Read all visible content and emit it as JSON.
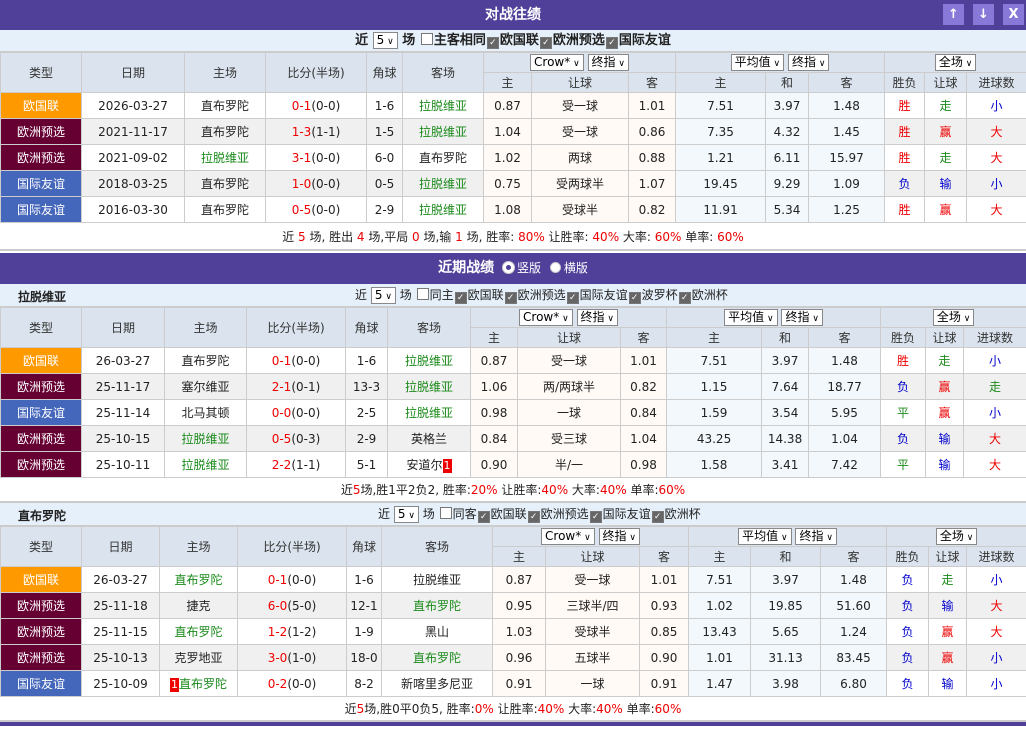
{
  "title": "对战往绩",
  "window_buttons": [
    {
      "icon": "arrow-up-icon",
      "glyph": "↑"
    },
    {
      "icon": "arrow-down-icon",
      "glyph": "↓"
    },
    {
      "icon": "close-icon",
      "glyph": "X"
    }
  ],
  "colors": {
    "accent": "#50409a",
    "欧国联": "#ff9900",
    "欧洲预选": "#660033",
    "国际友谊": "#4466bb",
    "win": "#e00000",
    "lose": "#0000cc",
    "draw": "#1a8a1a"
  },
  "headers": {
    "type": "类型",
    "date": "日期",
    "home": "主场",
    "score": "比分(半场)",
    "corner": "角球",
    "away": "客场",
    "h": "主",
    "hcp": "让球",
    "a": "客",
    "ah": "主",
    "ad": "和",
    "aa": "客",
    "res": "胜负",
    "hres": "让球",
    "goals": "进球数",
    "sel_company": "Crow*",
    "sel_final": "终指",
    "sel_avg": "平均值",
    "sel_final2": "终指",
    "sel_period": "全场"
  },
  "recent": {
    "title": "近期战绩",
    "radio_vertical": "竖版",
    "radio_horizontal": "横版",
    "selected": "横版"
  },
  "sections": [
    {
      "team": "",
      "filter": {
        "prefix": "近",
        "count": "5",
        "suffix": "场",
        "same_label": "主客相同",
        "same_checked": false,
        "leagues": [
          "欧国联",
          "欧洲预选",
          "国际友谊"
        ]
      },
      "rows": [
        {
          "type": "欧国联",
          "date": "2026-03-27",
          "home": "直布罗陀",
          "home_hl": false,
          "score": "0-1",
          "half": "(0-0)",
          "corner": "1-6",
          "away": "拉脱维亚",
          "away_hl": true,
          "h": "0.87",
          "hcp": "受一球",
          "a": "1.01",
          "ah": "7.51",
          "ad": "3.97",
          "aa": "1.48",
          "res": "胜",
          "hres": "走",
          "goals": "小"
        },
        {
          "type": "欧洲预选",
          "date": "2021-11-17",
          "home": "直布罗陀",
          "home_hl": false,
          "score": "1-3",
          "half": "(1-1)",
          "corner": "1-5",
          "away": "拉脱维亚",
          "away_hl": true,
          "h": "1.04",
          "hcp": "受一球",
          "a": "0.86",
          "ah": "7.35",
          "ad": "4.32",
          "aa": "1.45",
          "res": "胜",
          "hres": "赢",
          "goals": "大"
        },
        {
          "type": "欧洲预选",
          "date": "2021-09-02",
          "home": "拉脱维亚",
          "home_hl": true,
          "score": "3-1",
          "half": "(0-0)",
          "corner": "6-0",
          "away": "直布罗陀",
          "away_hl": false,
          "h": "1.02",
          "hcp": "两球",
          "a": "0.88",
          "ah": "1.21",
          "ad": "6.11",
          "aa": "15.97",
          "res": "胜",
          "hres": "走",
          "goals": "大"
        },
        {
          "type": "国际友谊",
          "date": "2018-03-25",
          "home": "直布罗陀",
          "home_hl": false,
          "score": "1-0",
          "half": "(0-0)",
          "corner": "0-5",
          "away": "拉脱维亚",
          "away_hl": true,
          "h": "0.75",
          "hcp": "受两球半",
          "a": "1.07",
          "ah": "19.45",
          "ad": "9.29",
          "aa": "1.09",
          "res": "负",
          "hres": "输",
          "goals": "小"
        },
        {
          "type": "国际友谊",
          "date": "2016-03-30",
          "home": "直布罗陀",
          "home_hl": false,
          "score": "0-5",
          "half": "(0-0)",
          "corner": "2-9",
          "away": "拉脱维亚",
          "away_hl": true,
          "h": "1.08",
          "hcp": "受球半",
          "a": "0.82",
          "ah": "11.91",
          "ad": "5.34",
          "aa": "1.25",
          "res": "胜",
          "hres": "赢",
          "goals": "大"
        }
      ],
      "summary": [
        {
          "t": "近 "
        },
        {
          "t": "5",
          "red": true
        },
        {
          "t": " 场, 胜出 "
        },
        {
          "t": "4",
          "red": true
        },
        {
          "t": " 场,平局 "
        },
        {
          "t": "0",
          "red": true
        },
        {
          "t": " 场,输 "
        },
        {
          "t": "1",
          "red": true
        },
        {
          "t": " 场, 胜率: "
        },
        {
          "t": "80%",
          "red": true
        },
        {
          "t": " 让胜率: "
        },
        {
          "t": "40%",
          "red": true
        },
        {
          "t": " 大率: "
        },
        {
          "t": "60%",
          "red": true
        },
        {
          "t": " 单率: "
        },
        {
          "t": "60%",
          "red": true
        }
      ]
    },
    {
      "team": "拉脱维亚",
      "filter": {
        "prefix": "近",
        "count": "5",
        "suffix": "场",
        "same_label": "同主",
        "same_checked": false,
        "leagues": [
          "欧国联",
          "欧洲预选",
          "国际友谊",
          "波罗杯",
          "欧洲杯"
        ]
      },
      "rows": [
        {
          "type": "欧国联",
          "date": "26-03-27",
          "home": "直布罗陀",
          "home_hl": false,
          "score": "0-1",
          "half": "(0-0)",
          "corner": "1-6",
          "away": "拉脱维亚",
          "away_hl": true,
          "h": "0.87",
          "hcp": "受一球",
          "a": "1.01",
          "ah": "7.51",
          "ad": "3.97",
          "aa": "1.48",
          "res": "胜",
          "hres": "走",
          "goals": "小"
        },
        {
          "type": "欧洲预选",
          "date": "25-11-17",
          "home": "塞尔维亚",
          "home_hl": false,
          "score": "2-1",
          "half": "(0-1)",
          "corner": "13-3",
          "away": "拉脱维亚",
          "away_hl": true,
          "h": "1.06",
          "hcp": "两/两球半",
          "a": "0.82",
          "ah": "1.15",
          "ad": "7.64",
          "aa": "18.77",
          "res": "负",
          "hres": "赢",
          "goals": "走"
        },
        {
          "type": "国际友谊",
          "date": "25-11-14",
          "home": "北马其顿",
          "home_hl": false,
          "score": "0-0",
          "half": "(0-0)",
          "corner": "2-5",
          "away": "拉脱维亚",
          "away_hl": true,
          "h": "0.98",
          "hcp": "一球",
          "a": "0.84",
          "ah": "1.59",
          "ad": "3.54",
          "aa": "5.95",
          "res": "平",
          "hres": "赢",
          "goals": "小"
        },
        {
          "type": "欧洲预选",
          "date": "25-10-15",
          "home": "拉脱维亚",
          "home_hl": true,
          "score": "0-5",
          "half": "(0-3)",
          "corner": "2-9",
          "away": "英格兰",
          "away_hl": false,
          "h": "0.84",
          "hcp": "受三球",
          "a": "1.04",
          "ah": "43.25",
          "ad": "14.38",
          "aa": "1.04",
          "res": "负",
          "hres": "输",
          "goals": "大"
        },
        {
          "type": "欧洲预选",
          "date": "25-10-11",
          "home": "拉脱维亚",
          "home_hl": true,
          "score": "2-2",
          "half": "(1-1)",
          "corner": "5-1",
          "away": "安道尔",
          "away_hl": false,
          "away_badge": "1",
          "h": "0.90",
          "hcp": "半/一",
          "a": "0.98",
          "ah": "1.58",
          "ad": "3.41",
          "aa": "7.42",
          "res": "平",
          "hres": "输",
          "goals": "大"
        }
      ],
      "summary": [
        {
          "t": "近"
        },
        {
          "t": "5",
          "red": true
        },
        {
          "t": "场,胜1平2负2, 胜率:"
        },
        {
          "t": "20%",
          "red": true
        },
        {
          "t": " 让胜率:"
        },
        {
          "t": "40%",
          "red": true
        },
        {
          "t": " 大率:"
        },
        {
          "t": "40%",
          "red": true
        },
        {
          "t": " 单率:"
        },
        {
          "t": "60%",
          "red": true
        }
      ]
    },
    {
      "team": "直布罗陀",
      "filter": {
        "prefix": "近",
        "count": "5",
        "suffix": "场",
        "same_label": "同客",
        "same_checked": false,
        "leagues": [
          "欧国联",
          "欧洲预选",
          "国际友谊",
          "欧洲杯"
        ]
      },
      "rows": [
        {
          "type": "欧国联",
          "date": "26-03-27",
          "home": "直布罗陀",
          "home_hl": true,
          "score": "0-1",
          "half": "(0-0)",
          "corner": "1-6",
          "away": "拉脱维亚",
          "away_hl": false,
          "h": "0.87",
          "hcp": "受一球",
          "a": "1.01",
          "ah": "7.51",
          "ad": "3.97",
          "aa": "1.48",
          "res": "负",
          "hres": "走",
          "goals": "小"
        },
        {
          "type": "欧洲预选",
          "date": "25-11-18",
          "home": "捷克",
          "home_hl": false,
          "score": "6-0",
          "half": "(5-0)",
          "corner": "12-1",
          "away": "直布罗陀",
          "away_hl": true,
          "h": "0.95",
          "hcp": "三球半/四",
          "a": "0.93",
          "ah": "1.02",
          "ad": "19.85",
          "aa": "51.60",
          "res": "负",
          "hres": "输",
          "goals": "大"
        },
        {
          "type": "欧洲预选",
          "date": "25-11-15",
          "home": "直布罗陀",
          "home_hl": true,
          "score": "1-2",
          "half": "(1-2)",
          "corner": "1-9",
          "away": "黑山",
          "away_hl": false,
          "h": "1.03",
          "hcp": "受球半",
          "a": "0.85",
          "ah": "13.43",
          "ad": "5.65",
          "aa": "1.24",
          "res": "负",
          "hres": "赢",
          "goals": "大"
        },
        {
          "type": "欧洲预选",
          "date": "25-10-13",
          "home": "克罗地亚",
          "home_hl": false,
          "score": "3-0",
          "half": "(1-0)",
          "corner": "18-0",
          "away": "直布罗陀",
          "away_hl": true,
          "h": "0.96",
          "hcp": "五球半",
          "a": "0.90",
          "ah": "1.01",
          "ad": "31.13",
          "aa": "83.45",
          "res": "负",
          "hres": "赢",
          "goals": "小"
        },
        {
          "type": "国际友谊",
          "date": "25-10-09",
          "home": "直布罗陀",
          "home_hl": true,
          "home_badge": "1",
          "score": "0-2",
          "half": "(0-0)",
          "corner": "8-2",
          "away": "新喀里多尼亚",
          "away_hl": false,
          "h": "0.91",
          "hcp": "一球",
          "a": "0.91",
          "ah": "1.47",
          "ad": "3.98",
          "aa": "6.80",
          "res": "负",
          "hres": "输",
          "goals": "小"
        }
      ],
      "summary": [
        {
          "t": "近"
        },
        {
          "t": "5",
          "red": true
        },
        {
          "t": "场,胜0平0负5, 胜率:"
        },
        {
          "t": "0%",
          "red": true
        },
        {
          "t": " 让胜率:"
        },
        {
          "t": "40%",
          "red": true
        },
        {
          "t": " 大率:"
        },
        {
          "t": "40%",
          "red": true
        },
        {
          "t": " 单率:"
        },
        {
          "t": "60%",
          "red": true
        }
      ]
    }
  ]
}
